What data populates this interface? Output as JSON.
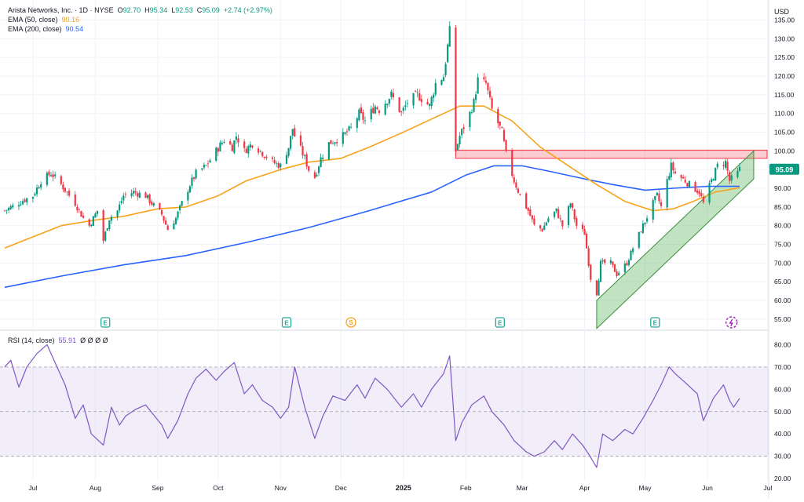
{
  "symbol": {
    "name": "Arista Networks, Inc.",
    "interval": "1D",
    "exchange": "NYSE",
    "o_label": "O",
    "open": "92.70",
    "h_label": "H",
    "high": "95.34",
    "l_label": "L",
    "low": "92.53",
    "c_label": "C",
    "close": "95.09",
    "change": "+2.74 (+2.97%)"
  },
  "indicators": {
    "ema50": {
      "label": "EMA (50, close)",
      "value": "90.16",
      "color": "#f7a21b"
    },
    "ema200": {
      "label": "EMA (200, close)",
      "value": "90.54",
      "color": "#2962ff"
    },
    "rsi": {
      "label": "RSI (14, close)",
      "value": "55.91",
      "extra": "Ø Ø Ø Ø",
      "color": "#7e57c2"
    }
  },
  "currency": "USD",
  "last_price_tag": "95.09",
  "colors": {
    "up": "#089981",
    "down": "#f23645",
    "resistance": "#f23645",
    "support": "#4caf50",
    "rsi_band": "#7e57c2",
    "grid": "#f0f3fa"
  },
  "chart_data": [
    {
      "type": "candlestick",
      "title": "Arista Networks, Inc. · 1D · NYSE",
      "x_ticks": [
        "Jul",
        "Aug",
        "Sep",
        "Oct",
        "Nov",
        "Dec",
        "2025",
        "Feb",
        "Mar",
        "Apr",
        "May",
        "Jun",
        "Jul"
      ],
      "y_ticks": [
        135.0,
        130.0,
        125.0,
        120.0,
        115.0,
        110.0,
        105.0,
        100.0,
        95.0,
        90.0,
        85.0,
        80.0,
        75.0,
        70.0,
        65.0,
        60.0,
        55.0
      ],
      "ylim": [
        53.5,
        137
      ],
      "grid": true,
      "price_path": [
        [
          "2024-06-17",
          84
        ],
        [
          "2024-06-27",
          87
        ],
        [
          "2024-07-01",
          88
        ],
        [
          "2024-07-05",
          92
        ],
        [
          "2024-07-10",
          94
        ],
        [
          "2024-07-15",
          91
        ],
        [
          "2024-07-22",
          86
        ],
        [
          "2024-07-26",
          82
        ],
        [
          "2024-07-29",
          80
        ],
        [
          "2024-08-02",
          84
        ],
        [
          "2024-08-05",
          76
        ],
        [
          "2024-08-08",
          82
        ],
        [
          "2024-08-12",
          84
        ],
        [
          "2024-08-15",
          88
        ],
        [
          "2024-08-20",
          89
        ],
        [
          "2024-08-26",
          88
        ],
        [
          "2024-08-29",
          86
        ],
        [
          "2024-09-03",
          83
        ],
        [
          "2024-09-06",
          79
        ],
        [
          "2024-09-10",
          82
        ],
        [
          "2024-09-13",
          86
        ],
        [
          "2024-09-17",
          91
        ],
        [
          "2024-09-20",
          94
        ],
        [
          "2024-09-25",
          96
        ],
        [
          "2024-09-30",
          100
        ],
        [
          "2024-10-04",
          103
        ],
        [
          "2024-10-08",
          101
        ],
        [
          "2024-10-10",
          104
        ],
        [
          "2024-10-14",
          100
        ],
        [
          "2024-10-18",
          102
        ],
        [
          "2024-10-24",
          99
        ],
        [
          "2024-10-28",
          97
        ],
        [
          "2024-11-01",
          96
        ],
        [
          "2024-11-05",
          101
        ],
        [
          "2024-11-07",
          106
        ],
        [
          "2024-11-08",
          104
        ],
        [
          "2024-11-13",
          98
        ],
        [
          "2024-11-15",
          95
        ],
        [
          "2024-11-18",
          93
        ],
        [
          "2024-11-21",
          98
        ],
        [
          "2024-11-25",
          102
        ],
        [
          "2024-12-02",
          104
        ],
        [
          "2024-12-06",
          106
        ],
        [
          "2024-12-10",
          110
        ],
        [
          "2024-12-13",
          108
        ],
        [
          "2024-12-18",
          112
        ],
        [
          "2024-12-20",
          111
        ],
        [
          "2024-12-26",
          115
        ],
        [
          "2024-12-31",
          110
        ],
        [
          "2025-01-03",
          113
        ],
        [
          "2025-01-08",
          115
        ],
        [
          "2025-01-14",
          112
        ],
        [
          "2025-01-17",
          118
        ],
        [
          "2025-01-21",
          120
        ],
        [
          "2025-01-23",
          128
        ],
        [
          "2025-01-24",
          132
        ],
        [
          "2025-01-27",
          100
        ],
        [
          "2025-01-29",
          104
        ],
        [
          "2025-02-03",
          110
        ],
        [
          "2025-02-05",
          113
        ],
        [
          "2025-02-07",
          119
        ],
        [
          "2025-02-11",
          118
        ],
        [
          "2025-02-14",
          111
        ],
        [
          "2025-02-19",
          105
        ],
        [
          "2025-02-21",
          99
        ],
        [
          "2025-02-25",
          92
        ],
        [
          "2025-02-28",
          88
        ],
        [
          "2025-03-04",
          84
        ],
        [
          "2025-03-07",
          80
        ],
        [
          "2025-03-11",
          79
        ],
        [
          "2025-03-14",
          82
        ],
        [
          "2025-03-18",
          84
        ],
        [
          "2025-03-21",
          80
        ],
        [
          "2025-03-25",
          86
        ],
        [
          "2025-03-28",
          80
        ],
        [
          "2025-04-01",
          78
        ],
        [
          "2025-04-03",
          70
        ],
        [
          "2025-04-04",
          66
        ],
        [
          "2025-04-07",
          62
        ],
        [
          "2025-04-09",
          70
        ],
        [
          "2025-04-14",
          70
        ],
        [
          "2025-04-17",
          67
        ],
        [
          "2025-04-22",
          70
        ],
        [
          "2025-04-25",
          74
        ],
        [
          "2025-04-30",
          80
        ],
        [
          "2025-05-05",
          86
        ],
        [
          "2025-05-07",
          88
        ],
        [
          "2025-05-09",
          85
        ],
        [
          "2025-05-12",
          92
        ],
        [
          "2025-05-14",
          96
        ],
        [
          "2025-05-16",
          94
        ],
        [
          "2025-05-21",
          92
        ],
        [
          "2025-05-23",
          91
        ],
        [
          "2025-05-28",
          89
        ],
        [
          "2025-05-30",
          86
        ],
        [
          "2025-06-03",
          92
        ],
        [
          "2025-06-06",
          96
        ],
        [
          "2025-06-10",
          97
        ],
        [
          "2025-06-12",
          92
        ],
        [
          "2025-06-16",
          94
        ],
        [
          "2025-06-17",
          95.09
        ]
      ],
      "ema50": [
        [
          "2024-06-17",
          74
        ],
        [
          "2024-07-01",
          77
        ],
        [
          "2024-07-15",
          80
        ],
        [
          "2024-08-01",
          81.5
        ],
        [
          "2024-08-15",
          82.5
        ],
        [
          "2024-09-01",
          84.5
        ],
        [
          "2024-09-15",
          85
        ],
        [
          "2024-10-01",
          88
        ],
        [
          "2024-10-15",
          92
        ],
        [
          "2024-11-01",
          95
        ],
        [
          "2024-11-15",
          97
        ],
        [
          "2024-12-01",
          98
        ],
        [
          "2024-12-15",
          101
        ],
        [
          "2025-01-01",
          105
        ],
        [
          "2025-01-15",
          108.5
        ],
        [
          "2025-01-29",
          112
        ],
        [
          "2025-02-10",
          112
        ],
        [
          "2025-02-24",
          108
        ],
        [
          "2025-03-10",
          101
        ],
        [
          "2025-03-24",
          96
        ],
        [
          "2025-04-07",
          91
        ],
        [
          "2025-04-21",
          86.5
        ],
        [
          "2025-05-05",
          84
        ],
        [
          "2025-05-15",
          84.5
        ],
        [
          "2025-05-25",
          86.5
        ],
        [
          "2025-06-05",
          89
        ],
        [
          "2025-06-17",
          90.16
        ]
      ],
      "ema200": [
        [
          "2024-06-17",
          63.5
        ],
        [
          "2024-07-15",
          66.5
        ],
        [
          "2024-08-15",
          69.5
        ],
        [
          "2024-09-15",
          72
        ],
        [
          "2024-10-15",
          75.5
        ],
        [
          "2024-11-15",
          79.5
        ],
        [
          "2024-12-15",
          84
        ],
        [
          "2025-01-15",
          89
        ],
        [
          "2025-02-01",
          93.5
        ],
        [
          "2025-02-15",
          96
        ],
        [
          "2025-03-01",
          96
        ],
        [
          "2025-03-15",
          94.5
        ],
        [
          "2025-04-01",
          92.5
        ],
        [
          "2025-04-15",
          91
        ],
        [
          "2025-05-01",
          89.5
        ],
        [
          "2025-05-15",
          90
        ],
        [
          "2025-06-01",
          90.5
        ],
        [
          "2025-06-17",
          90.54
        ]
      ],
      "resistance_zone": {
        "from": "2025-01-27",
        "to": "2025-06-24",
        "low": 98,
        "high": 100.2
      },
      "support_trendline": {
        "from": [
          "2025-04-07",
          60
        ],
        "to": [
          "2025-06-24",
          100
        ],
        "width": 2.5
      },
      "events": [
        {
          "date": "2024-08-06",
          "label": "E"
        },
        {
          "date": "2024-11-04",
          "label": "E"
        },
        {
          "date": "2024-12-06",
          "label": "S"
        },
        {
          "date": "2025-02-18",
          "label": "E"
        },
        {
          "date": "2025-05-06",
          "label": "E"
        },
        {
          "date": "2025-06-13",
          "label": "D"
        }
      ]
    },
    {
      "type": "line",
      "title": "RSI (14, close)",
      "y_ticks": [
        80.0,
        70.0,
        60.0,
        50.0,
        40.0,
        30.0,
        20.0
      ],
      "ylim": [
        19,
        84
      ],
      "band": [
        30,
        70
      ],
      "midline": 50,
      "values": [
        [
          "2024-06-17",
          70
        ],
        [
          "2024-06-20",
          73
        ],
        [
          "2024-06-24",
          61
        ],
        [
          "2024-06-28",
          70
        ],
        [
          "2024-07-03",
          76
        ],
        [
          "2024-07-08",
          80
        ],
        [
          "2024-07-12",
          72
        ],
        [
          "2024-07-17",
          62
        ],
        [
          "2024-07-22",
          47
        ],
        [
          "2024-07-26",
          53
        ],
        [
          "2024-07-30",
          40
        ],
        [
          "2024-08-05",
          35
        ],
        [
          "2024-08-09",
          52
        ],
        [
          "2024-08-13",
          44
        ],
        [
          "2024-08-16",
          48
        ],
        [
          "2024-08-21",
          51
        ],
        [
          "2024-08-26",
          53
        ],
        [
          "2024-09-03",
          44
        ],
        [
          "2024-09-06",
          38
        ],
        [
          "2024-09-11",
          46
        ],
        [
          "2024-09-16",
          58
        ],
        [
          "2024-09-20",
          65
        ],
        [
          "2024-09-25",
          69
        ],
        [
          "2024-09-30",
          64
        ],
        [
          "2024-10-04",
          68
        ],
        [
          "2024-10-09",
          72
        ],
        [
          "2024-10-14",
          58
        ],
        [
          "2024-10-18",
          62
        ],
        [
          "2024-10-23",
          55
        ],
        [
          "2024-10-28",
          52
        ],
        [
          "2024-11-01",
          47
        ],
        [
          "2024-11-05",
          52
        ],
        [
          "2024-11-08",
          70
        ],
        [
          "2024-11-13",
          52
        ],
        [
          "2024-11-18",
          38
        ],
        [
          "2024-11-22",
          48
        ],
        [
          "2024-11-27",
          57
        ],
        [
          "2024-12-03",
          55
        ],
        [
          "2024-12-09",
          62
        ],
        [
          "2024-12-13",
          56
        ],
        [
          "2024-12-18",
          65
        ],
        [
          "2024-12-24",
          60
        ],
        [
          "2024-12-31",
          52
        ],
        [
          "2025-01-06",
          58
        ],
        [
          "2025-01-10",
          52
        ],
        [
          "2025-01-15",
          60
        ],
        [
          "2025-01-21",
          67
        ],
        [
          "2025-01-24",
          75
        ],
        [
          "2025-01-27",
          37
        ],
        [
          "2025-01-30",
          45
        ],
        [
          "2025-02-04",
          53
        ],
        [
          "2025-02-10",
          57
        ],
        [
          "2025-02-14",
          50
        ],
        [
          "2025-02-20",
          44
        ],
        [
          "2025-02-25",
          37
        ],
        [
          "2025-03-03",
          32
        ],
        [
          "2025-03-07",
          30
        ],
        [
          "2025-03-12",
          32
        ],
        [
          "2025-03-17",
          37
        ],
        [
          "2025-03-21",
          33
        ],
        [
          "2025-03-26",
          40
        ],
        [
          "2025-03-31",
          35
        ],
        [
          "2025-04-03",
          31
        ],
        [
          "2025-04-07",
          25
        ],
        [
          "2025-04-10",
          40
        ],
        [
          "2025-04-15",
          37
        ],
        [
          "2025-04-21",
          42
        ],
        [
          "2025-04-25",
          40
        ],
        [
          "2025-04-30",
          47
        ],
        [
          "2025-05-05",
          55
        ],
        [
          "2025-05-09",
          62
        ],
        [
          "2025-05-13",
          70
        ],
        [
          "2025-05-16",
          67
        ],
        [
          "2025-05-21",
          63
        ],
        [
          "2025-05-27",
          58
        ],
        [
          "2025-05-30",
          46
        ],
        [
          "2025-06-04",
          56
        ],
        [
          "2025-06-09",
          62
        ],
        [
          "2025-06-12",
          55
        ],
        [
          "2025-06-14",
          52
        ],
        [
          "2025-06-17",
          55.91
        ]
      ],
      "grid": true
    }
  ]
}
